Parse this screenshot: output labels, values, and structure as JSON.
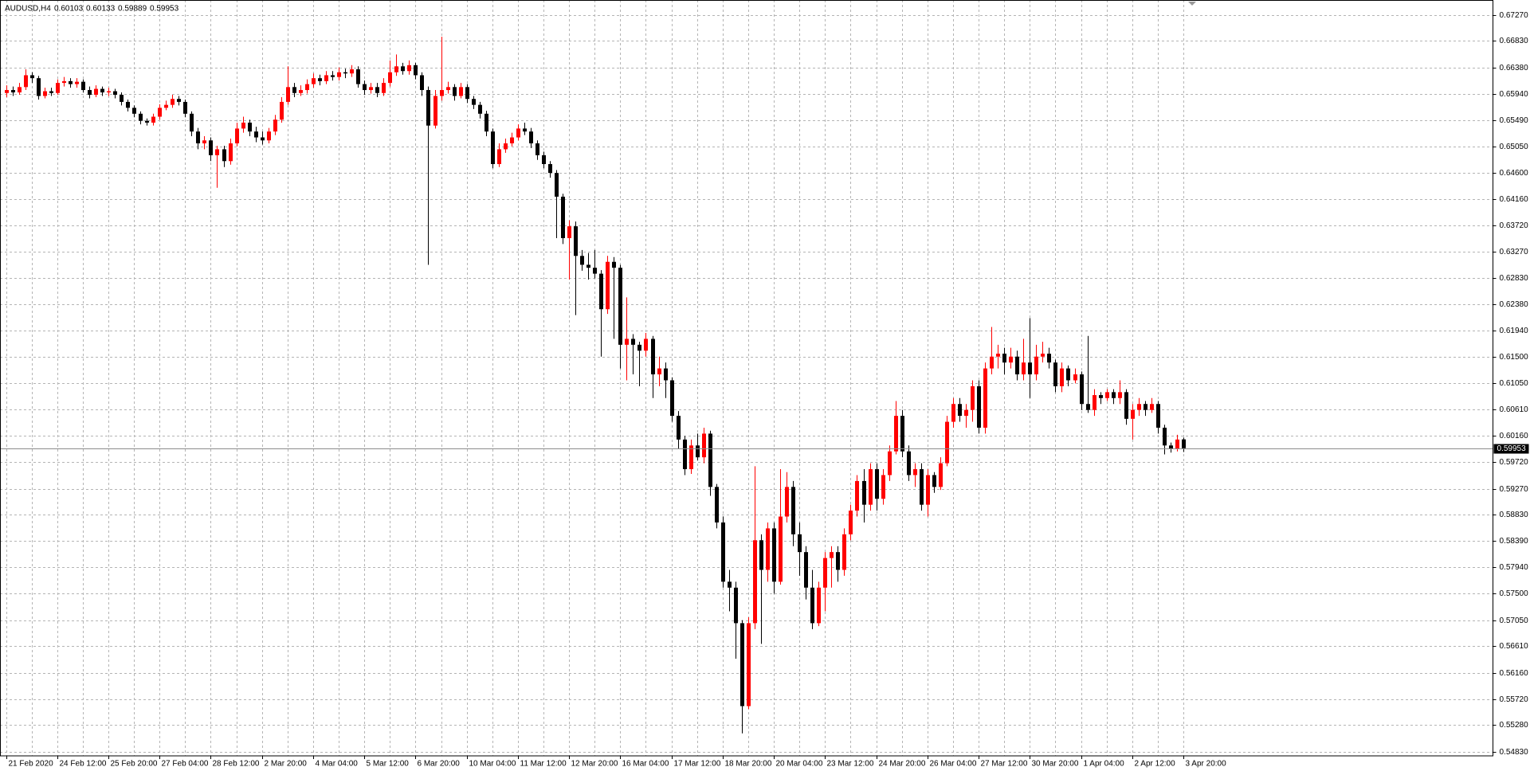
{
  "chart_data": {
    "type": "candlestick",
    "title": "AUDUSD,H4",
    "up_color": "#ff0000",
    "down_color": "#000000",
    "grid": true,
    "ylim": [
      0.5476,
      0.6752
    ],
    "yticks": [
      {
        "value": 0.6727,
        "label": "0.67270"
      },
      {
        "value": 0.6683,
        "label": "0.66830"
      },
      {
        "value": 0.6638,
        "label": "0.66380"
      },
      {
        "value": 0.6594,
        "label": "0.65940"
      },
      {
        "value": 0.6549,
        "label": "0.65490"
      },
      {
        "value": 0.6505,
        "label": "0.65050"
      },
      {
        "value": 0.646,
        "label": "0.64600"
      },
      {
        "value": 0.6416,
        "label": "0.64160"
      },
      {
        "value": 0.6372,
        "label": "0.63720"
      },
      {
        "value": 0.6327,
        "label": "0.63270"
      },
      {
        "value": 0.6283,
        "label": "0.62830"
      },
      {
        "value": 0.6238,
        "label": "0.62380"
      },
      {
        "value": 0.6194,
        "label": "0.61940"
      },
      {
        "value": 0.615,
        "label": "0.61500"
      },
      {
        "value": 0.6105,
        "label": "0.61050"
      },
      {
        "value": 0.6061,
        "label": "0.60610"
      },
      {
        "value": 0.6016,
        "label": "0.60160"
      },
      {
        "value": 0.5972,
        "label": "0.59720"
      },
      {
        "value": 0.5927,
        "label": "0.59270"
      },
      {
        "value": 0.5883,
        "label": "0.58830"
      },
      {
        "value": 0.5839,
        "label": "0.58390"
      },
      {
        "value": 0.5794,
        "label": "0.57940"
      },
      {
        "value": 0.575,
        "label": "0.57500"
      },
      {
        "value": 0.5705,
        "label": "0.57050"
      },
      {
        "value": 0.5661,
        "label": "0.56610"
      },
      {
        "value": 0.5616,
        "label": "0.56160"
      },
      {
        "value": 0.5572,
        "label": "0.55720"
      },
      {
        "value": 0.5528,
        "label": "0.55280"
      },
      {
        "value": 0.5483,
        "label": "0.54830"
      }
    ],
    "categories": [
      "21 Feb 2020",
      null,
      null,
      null,
      null,
      null,
      null,
      null,
      "24 Feb 12:00",
      null,
      null,
      null,
      null,
      null,
      null,
      null,
      "25 Feb 20:00",
      null,
      null,
      null,
      null,
      null,
      null,
      null,
      "27 Feb 04:00",
      null,
      null,
      null,
      null,
      null,
      null,
      null,
      "28 Feb 12:00",
      null,
      null,
      null,
      null,
      null,
      null,
      null,
      "2 Mar 20:00",
      null,
      null,
      null,
      null,
      null,
      null,
      null,
      "4 Mar 04:00",
      null,
      null,
      null,
      null,
      null,
      null,
      null,
      "5 Mar 12:00",
      null,
      null,
      null,
      null,
      null,
      null,
      null,
      "6 Mar 20:00",
      null,
      null,
      null,
      null,
      null,
      null,
      null,
      "10 Mar 04:00",
      null,
      null,
      null,
      null,
      null,
      null,
      null,
      "11 Mar 12:00",
      null,
      null,
      null,
      null,
      null,
      null,
      null,
      "12 Mar 20:00",
      null,
      null,
      null,
      null,
      null,
      null,
      null,
      "16 Mar 04:00",
      null,
      null,
      null,
      null,
      null,
      null,
      null,
      "17 Mar 12:00",
      null,
      null,
      null,
      null,
      null,
      null,
      null,
      "18 Mar 20:00",
      null,
      null,
      null,
      null,
      null,
      null,
      null,
      "20 Mar 04:00",
      null,
      null,
      null,
      null,
      null,
      null,
      null,
      "23 Mar 12:00",
      null,
      null,
      null,
      null,
      null,
      null,
      null,
      "24 Mar 20:00",
      null,
      null,
      null,
      null,
      null,
      null,
      null,
      "26 Mar 04:00",
      null,
      null,
      null,
      null,
      null,
      null,
      null,
      "27 Mar 12:00",
      null,
      null,
      null,
      null,
      null,
      null,
      null,
      "30 Mar 20:00",
      null,
      null,
      null,
      null,
      null,
      null,
      null,
      "1 Apr 04:00",
      null,
      null,
      null,
      null,
      null,
      null,
      null,
      "2 Apr 12:00",
      null,
      null,
      null,
      null,
      null,
      null,
      null,
      "3 Apr 20:00"
    ],
    "open": [
      0.6595,
      0.66,
      0.6596,
      0.6605,
      0.6625,
      0.662,
      0.659,
      0.6598,
      0.6595,
      0.6612,
      0.6615,
      0.661,
      0.6614,
      0.66,
      0.6592,
      0.6602,
      0.6596,
      0.6598,
      0.6592,
      0.658,
      0.657,
      0.656,
      0.6548,
      0.6545,
      0.6555,
      0.657,
      0.6575,
      0.6585,
      0.658,
      0.656,
      0.653,
      0.651,
      0.6515,
      0.649,
      0.65,
      0.648,
      0.651,
      0.6535,
      0.6545,
      0.653,
      0.652,
      0.6515,
      0.653,
      0.655,
      0.658,
      0.6605,
      0.6595,
      0.66,
      0.661,
      0.662,
      0.6615,
      0.6625,
      0.6622,
      0.663,
      0.6628,
      0.6635,
      0.661,
      0.66,
      0.6605,
      0.6595,
      0.6612,
      0.663,
      0.664,
      0.6632,
      0.6642,
      0.6625,
      0.66,
      0.654,
      0.659,
      0.66,
      0.6605,
      0.659,
      0.6605,
      0.6585,
      0.6575,
      0.656,
      0.653,
      0.6475,
      0.65,
      0.651,
      0.652,
      0.6535,
      0.653,
      0.651,
      0.649,
      0.6475,
      0.646,
      0.642,
      0.635,
      0.637,
      0.632,
      0.6305,
      0.63,
      0.629,
      0.623,
      0.631,
      0.63,
      0.617,
      0.618,
      0.617,
      0.616,
      0.618,
      0.612,
      0.613,
      0.611,
      0.605,
      0.601,
      0.596,
      0.6,
      0.598,
      0.602,
      0.593,
      0.587,
      0.577,
      0.576,
      0.57,
      0.556,
      0.57,
      0.584,
      0.579,
      0.586,
      0.577,
      0.588,
      0.593,
      0.585,
      0.582,
      0.576,
      0.57,
      0.576,
      0.581,
      0.582,
      0.579,
      0.585,
      0.589,
      0.594,
      0.59,
      0.596,
      0.591,
      0.595,
      0.599,
      0.605,
      0.599,
      0.595,
      0.596,
      0.59,
      0.595,
      0.593,
      0.597,
      0.604,
      0.607,
      0.605,
      0.606,
      0.61,
      0.603,
      0.613,
      0.615,
      0.6155,
      0.614,
      0.615,
      0.612,
      0.614,
      0.612,
      0.615,
      0.6155,
      0.614,
      0.61,
      0.613,
      0.611,
      0.612,
      0.607,
      0.606,
      0.6085,
      0.608,
      0.609,
      0.608,
      0.609,
      0.6045,
      0.606,
      0.607,
      0.606,
      0.607,
      0.603,
      0.6,
      0.5995,
      0.60103
    ],
    "high": [
      0.6608,
      0.6606,
      0.6612,
      0.6635,
      0.663,
      0.6624,
      0.6604,
      0.6604,
      0.6618,
      0.6622,
      0.662,
      0.662,
      0.6618,
      0.6606,
      0.6608,
      0.6606,
      0.6604,
      0.6602,
      0.6596,
      0.6584,
      0.6574,
      0.6564,
      0.6552,
      0.656,
      0.6576,
      0.6582,
      0.6592,
      0.659,
      0.6584,
      0.6564,
      0.6536,
      0.6522,
      0.652,
      0.6506,
      0.6506,
      0.6518,
      0.6545,
      0.6555,
      0.655,
      0.6538,
      0.653,
      0.6536,
      0.6558,
      0.6588,
      0.664,
      0.6612,
      0.6608,
      0.6618,
      0.6628,
      0.6626,
      0.6632,
      0.6632,
      0.6638,
      0.6636,
      0.6642,
      0.664,
      0.6616,
      0.6612,
      0.6612,
      0.662,
      0.665,
      0.666,
      0.6646,
      0.665,
      0.6646,
      0.663,
      0.6606,
      0.66,
      0.669,
      0.6614,
      0.661,
      0.6612,
      0.661,
      0.659,
      0.658,
      0.6565,
      0.6535,
      0.651,
      0.6518,
      0.6528,
      0.6542,
      0.6545,
      0.6536,
      0.6515,
      0.6496,
      0.648,
      0.6465,
      0.6425,
      0.638,
      0.6378,
      0.633,
      0.6325,
      0.633,
      0.6296,
      0.632,
      0.6318,
      0.6305,
      0.625,
      0.6188,
      0.6175,
      0.619,
      0.6185,
      0.615,
      0.614,
      0.6115,
      0.6058,
      0.6016,
      0.601,
      0.602,
      0.603,
      0.6025,
      0.5935,
      0.588,
      0.579,
      0.577,
      0.5705,
      0.571,
      0.5965,
      0.585,
      0.587,
      0.587,
      0.596,
      0.5955,
      0.594,
      0.587,
      0.583,
      0.579,
      0.577,
      0.582,
      0.583,
      0.583,
      0.586,
      0.59,
      0.595,
      0.596,
      0.597,
      0.597,
      0.596,
      0.6,
      0.6075,
      0.606,
      0.6,
      0.597,
      0.597,
      0.596,
      0.5955,
      0.598,
      0.605,
      0.608,
      0.608,
      0.607,
      0.611,
      0.611,
      0.614,
      0.62,
      0.617,
      0.6165,
      0.6165,
      0.616,
      0.618,
      0.6215,
      0.617,
      0.6175,
      0.6165,
      0.6145,
      0.614,
      0.6135,
      0.613,
      0.6125,
      0.6185,
      0.6095,
      0.609,
      0.6095,
      0.6095,
      0.611,
      0.6095,
      0.607,
      0.608,
      0.6075,
      0.608,
      0.6075,
      0.6035,
      0.6005,
      0.6018,
      0.60133
    ],
    "low": [
      0.6588,
      0.659,
      0.6592,
      0.66,
      0.6612,
      0.6584,
      0.6586,
      0.659,
      0.6592,
      0.6606,
      0.6604,
      0.6604,
      0.6596,
      0.6586,
      0.6588,
      0.659,
      0.659,
      0.6586,
      0.6574,
      0.6564,
      0.6554,
      0.6542,
      0.654,
      0.654,
      0.655,
      0.6566,
      0.657,
      0.6574,
      0.6554,
      0.6522,
      0.65,
      0.65,
      0.648,
      0.6435,
      0.647,
      0.6474,
      0.6505,
      0.6528,
      0.6522,
      0.6512,
      0.6508,
      0.651,
      0.6524,
      0.6545,
      0.6575,
      0.6588,
      0.659,
      0.6594,
      0.6604,
      0.6608,
      0.661,
      0.6616,
      0.6616,
      0.662,
      0.6622,
      0.6604,
      0.6592,
      0.6594,
      0.6588,
      0.659,
      0.6606,
      0.6624,
      0.6626,
      0.6626,
      0.6618,
      0.659,
      0.6305,
      0.6535,
      0.6582,
      0.6594,
      0.6582,
      0.6586,
      0.6578,
      0.6568,
      0.6552,
      0.6522,
      0.6468,
      0.647,
      0.6494,
      0.6505,
      0.6515,
      0.6524,
      0.6502,
      0.6482,
      0.6468,
      0.6452,
      0.635,
      0.634,
      0.628,
      0.622,
      0.6295,
      0.628,
      0.6282,
      0.615,
      0.6222,
      0.618,
      0.613,
      0.611,
      0.612,
      0.61,
      0.615,
      0.608,
      0.61,
      0.608,
      0.604,
      0.5995,
      0.595,
      0.5952,
      0.5975,
      0.597,
      0.5915,
      0.586,
      0.576,
      0.572,
      0.564,
      0.5514,
      0.5555,
      0.569,
      0.5665,
      0.577,
      0.575,
      0.5765,
      0.587,
      0.583,
      0.578,
      0.574,
      0.569,
      0.5695,
      0.572,
      0.576,
      0.577,
      0.578,
      0.584,
      0.588,
      0.587,
      0.589,
      0.589,
      0.59,
      0.594,
      0.5985,
      0.598,
      0.594,
      0.593,
      0.589,
      0.588,
      0.592,
      0.5925,
      0.5965,
      0.603,
      0.604,
      0.603,
      0.604,
      0.602,
      0.602,
      0.612,
      0.613,
      0.612,
      0.613,
      0.611,
      0.611,
      0.608,
      0.611,
      0.614,
      0.613,
      0.609,
      0.609,
      0.61,
      0.6105,
      0.606,
      0.6055,
      0.605,
      0.607,
      0.6075,
      0.607,
      0.607,
      0.6035,
      0.601,
      0.605,
      0.605,
      0.6055,
      0.602,
      0.5985,
      0.5988,
      0.599,
      0.59889
    ],
    "close": [
      0.66,
      0.6596,
      0.6605,
      0.6625,
      0.662,
      0.659,
      0.6598,
      0.6595,
      0.6612,
      0.6615,
      0.661,
      0.6614,
      0.66,
      0.6592,
      0.6602,
      0.6596,
      0.6598,
      0.6592,
      0.658,
      0.657,
      0.656,
      0.6548,
      0.6545,
      0.6555,
      0.657,
      0.6575,
      0.6585,
      0.658,
      0.656,
      0.653,
      0.651,
      0.6515,
      0.649,
      0.65,
      0.648,
      0.651,
      0.6535,
      0.6545,
      0.653,
      0.652,
      0.6515,
      0.653,
      0.655,
      0.658,
      0.6605,
      0.6595,
      0.66,
      0.661,
      0.662,
      0.6615,
      0.6625,
      0.6622,
      0.663,
      0.6628,
      0.6635,
      0.661,
      0.66,
      0.6605,
      0.6595,
      0.6612,
      0.663,
      0.664,
      0.6632,
      0.6642,
      0.6625,
      0.66,
      0.654,
      0.659,
      0.66,
      0.6605,
      0.659,
      0.6605,
      0.6585,
      0.6575,
      0.656,
      0.653,
      0.6475,
      0.65,
      0.651,
      0.652,
      0.6535,
      0.653,
      0.651,
      0.649,
      0.6475,
      0.646,
      0.642,
      0.635,
      0.637,
      0.632,
      0.6305,
      0.63,
      0.629,
      0.623,
      0.631,
      0.63,
      0.617,
      0.618,
      0.617,
      0.616,
      0.618,
      0.612,
      0.613,
      0.611,
      0.605,
      0.601,
      0.596,
      0.6,
      0.598,
      0.602,
      0.593,
      0.587,
      0.577,
      0.576,
      0.57,
      0.556,
      0.57,
      0.584,
      0.579,
      0.586,
      0.577,
      0.588,
      0.593,
      0.585,
      0.582,
      0.576,
      0.57,
      0.576,
      0.581,
      0.582,
      0.579,
      0.585,
      0.589,
      0.594,
      0.59,
      0.596,
      0.591,
      0.595,
      0.599,
      0.605,
      0.599,
      0.595,
      0.596,
      0.59,
      0.595,
      0.593,
      0.597,
      0.604,
      0.607,
      0.605,
      0.606,
      0.61,
      0.603,
      0.613,
      0.615,
      0.6155,
      0.614,
      0.615,
      0.612,
      0.614,
      0.612,
      0.615,
      0.6155,
      0.614,
      0.61,
      0.613,
      0.611,
      0.612,
      0.607,
      0.606,
      0.6085,
      0.608,
      0.609,
      0.608,
      0.609,
      0.6045,
      0.606,
      0.607,
      0.606,
      0.607,
      0.603,
      0.6,
      0.5995,
      0.601,
      0.59953
    ]
  }
}
